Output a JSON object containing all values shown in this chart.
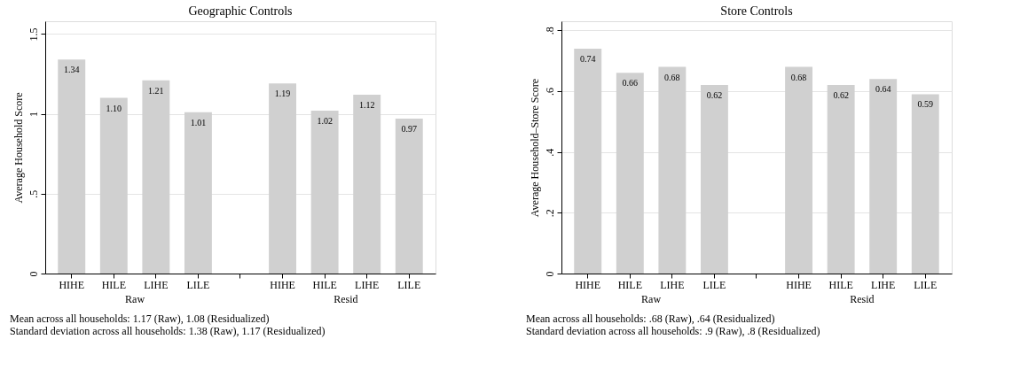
{
  "chart_data": [
    {
      "type": "bar",
      "title": "Geographic Controls",
      "ylabel": "Average Household Score",
      "categories": [
        "HIHE",
        "HILE",
        "LIHE",
        "LILE",
        null,
        "HIHE",
        "HILE",
        "LIHE",
        "LILE"
      ],
      "values": [
        1.34,
        1.1,
        1.21,
        1.01,
        null,
        1.19,
        1.02,
        1.12,
        0.97
      ],
      "color": "#d0d0d0",
      "value_labels": [
        "1.34",
        "1.10",
        "1.21",
        "1.01",
        null,
        "1.19",
        "1.02",
        "1.12",
        "0.97"
      ],
      "ylim": [
        0,
        1.58
      ],
      "yticks": [
        0,
        {
          "value": 0.5,
          "label": ".5"
        },
        1,
        1.5
      ],
      "grid": "y",
      "annotations": [
        "Raw",
        "Resid",
        "Mean across all households: 1.17 (Raw), 1.08 (Residualized)",
        "Standard deviation across all households: 1.38 (Raw), 1.17 (Residualized)"
      ]
    },
    {
      "type": "bar",
      "title": "Store Controls",
      "ylabel": "Average Household–Store Score",
      "categories": [
        "HIHE",
        "HILE",
        "LIHE",
        "LILE",
        null,
        "HIHE",
        "HILE",
        "LIHE",
        "LILE"
      ],
      "values": [
        0.74,
        0.66,
        0.68,
        0.62,
        null,
        0.68,
        0.62,
        0.64,
        0.59
      ],
      "color": "#d0d0d0",
      "value_labels": [
        "0.74",
        "0.66",
        "0.68",
        "0.62",
        null,
        "0.68",
        "0.62",
        "0.64",
        "0.59"
      ],
      "ylim": [
        0,
        0.83
      ],
      "yticks": [
        0,
        {
          "value": 0.2,
          "label": ".2"
        },
        {
          "value": 0.4,
          "label": ".4"
        },
        {
          "value": 0.6,
          "label": ".6"
        },
        {
          "value": 0.8,
          "label": ".8"
        }
      ],
      "grid": "y",
      "annotations": [
        "Raw",
        "Resid",
        "Mean across all households: .68 (Raw), .64 (Residualized)",
        "Standard deviation across all households: .9 (Raw), .8 (Residualized)"
      ]
    }
  ]
}
